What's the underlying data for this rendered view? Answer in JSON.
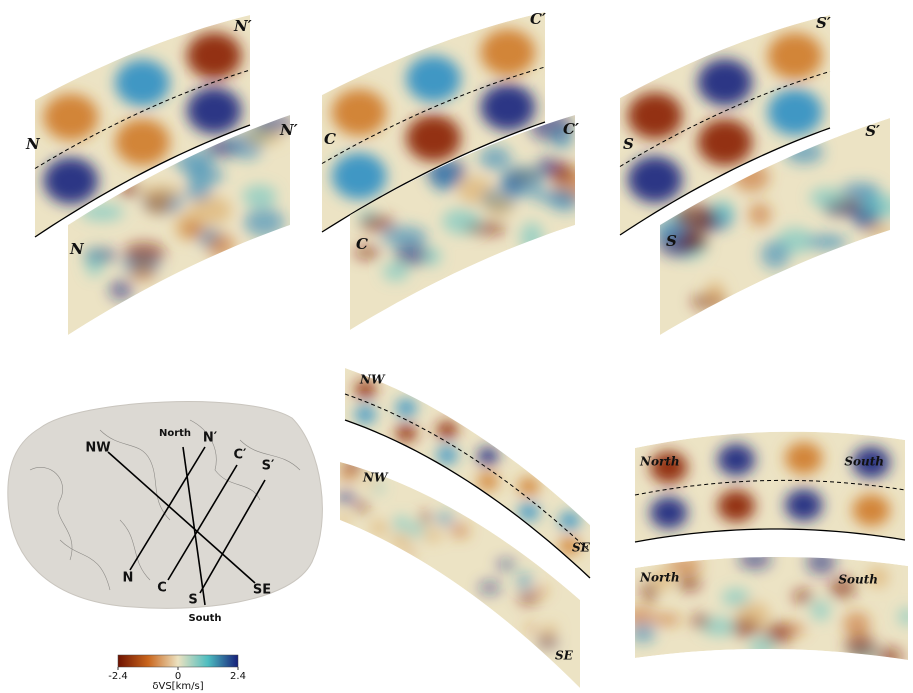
{
  "panels": [
    {
      "synthetic": [
        "N",
        "N′"
      ],
      "recovered": [
        "N",
        "N′"
      ]
    },
    {
      "synthetic": [
        "C",
        "C′"
      ],
      "recovered": [
        "C",
        "C′"
      ]
    },
    {
      "synthetic": [
        "S",
        "S′"
      ],
      "recovered": [
        "S",
        "S′"
      ]
    },
    {
      "synthetic": [
        "NW",
        "SE"
      ],
      "recovered": [
        "NW",
        "SE"
      ]
    },
    {
      "synthetic": [
        "North",
        "South"
      ],
      "recovered": [
        "North",
        "South"
      ]
    }
  ],
  "map": {
    "labels": [
      "NW",
      "SE",
      "North",
      "South",
      "N",
      "N′",
      "C",
      "C′",
      "S",
      "S′"
    ]
  },
  "colorbar": {
    "min": -2.4,
    "max": 2.4,
    "ticks": [
      -2.4,
      0,
      2.4
    ],
    "label": "δVS[km/s]"
  }
}
